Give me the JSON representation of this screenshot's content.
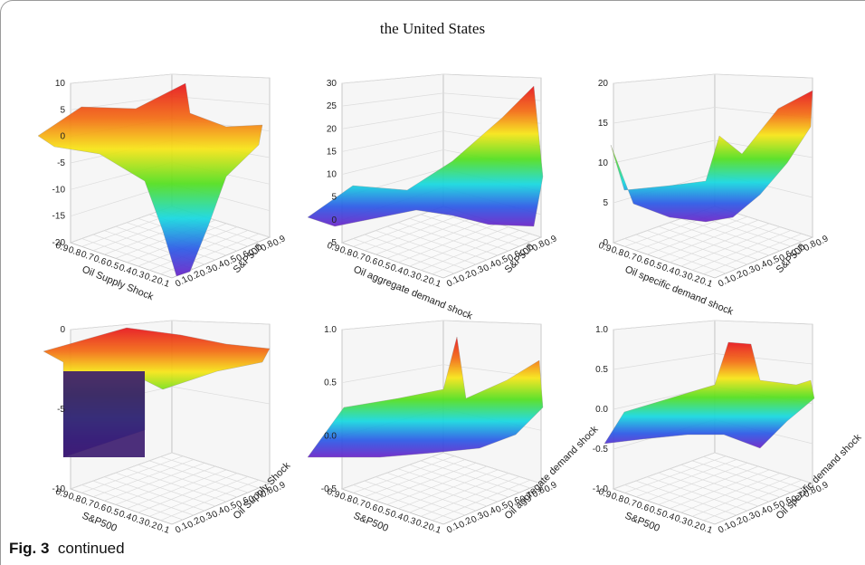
{
  "title": "the United States",
  "caption": {
    "label": "Fig. 3",
    "text": "continued"
  },
  "chart_data": [
    {
      "type": "surface",
      "panel": "row1-col1",
      "xlabel": "Oil Supply Shock",
      "ylabel": "S&P500",
      "xticks": [
        "0.9",
        "0.8",
        "0.7",
        "0.6",
        "0.5",
        "0.4",
        "0.3",
        "0.2",
        "0.1"
      ],
      "yticks": [
        "0.1",
        "0.2",
        "0.3",
        "0.4",
        "0.5",
        "0.6",
        "0.7",
        "0.8",
        "0.9"
      ],
      "zticks": [
        "10",
        "5",
        "0",
        "-5",
        "-10",
        "-15",
        "-20"
      ],
      "zlim": [
        -20,
        10
      ]
    },
    {
      "type": "surface",
      "panel": "row1-col2",
      "xlabel": "Oil aggregate demand shock",
      "ylabel": "S&P500",
      "xticks": [
        "0.9",
        "0.8",
        "0.7",
        "0.6",
        "0.5",
        "0.4",
        "0.3",
        "0.2",
        "0.1"
      ],
      "yticks": [
        "0.1",
        "0.2",
        "0.3",
        "0.4",
        "0.5",
        "0.6",
        "0.7",
        "0.8",
        "0.9"
      ],
      "zticks": [
        "30",
        "25",
        "20",
        "15",
        "10",
        "5",
        "0",
        "-5"
      ],
      "zlim": [
        -5,
        30
      ]
    },
    {
      "type": "surface",
      "panel": "row1-col3",
      "xlabel": "Oil specific demand shock",
      "ylabel": "S&P500",
      "xticks": [
        "0.9",
        "0.8",
        "0.7",
        "0.6",
        "0.5",
        "0.4",
        "0.3",
        "0.2",
        "0.1"
      ],
      "yticks": [
        "0.1",
        "0.2",
        "0.3",
        "0.4",
        "0.5",
        "0.6",
        "0.7",
        "0.8",
        "0.9"
      ],
      "zticks": [
        "20",
        "15",
        "10",
        "5",
        "0"
      ],
      "zlim": [
        0,
        20
      ]
    },
    {
      "type": "surface",
      "panel": "row2-col1",
      "xlabel": "S&P500",
      "ylabel": "Oil Supply Shock",
      "xticks": [
        "0.9",
        "0.8",
        "0.7",
        "0.6",
        "0.5",
        "0.4",
        "0.3",
        "0.2",
        "0.1"
      ],
      "yticks": [
        "0.1",
        "0.2",
        "0.3",
        "0.4",
        "0.5",
        "0.6",
        "0.7",
        "0.8",
        "0.9"
      ],
      "zticks": [
        "0",
        "-5",
        "-10"
      ],
      "zlim": [
        -10,
        0
      ]
    },
    {
      "type": "surface",
      "panel": "row2-col2",
      "xlabel": "S&P500",
      "ylabel": "Oil aggregate demand shock",
      "xticks": [
        "0.9",
        "0.8",
        "0.7",
        "0.6",
        "0.5",
        "0.4",
        "0.3",
        "0.2",
        "0.1"
      ],
      "yticks": [
        "0.1",
        "0.2",
        "0.3",
        "0.4",
        "0.5",
        "0.6",
        "0.7",
        "0.8",
        "0.9"
      ],
      "zticks": [
        "1.0",
        "0.5",
        "0.0",
        "-0.5"
      ],
      "zlim": [
        -0.5,
        1.0
      ]
    },
    {
      "type": "surface",
      "panel": "row2-col3",
      "xlabel": "S&P500",
      "ylabel": "Oil specific demand shock",
      "xticks": [
        "0.9",
        "0.8",
        "0.7",
        "0.6",
        "0.5",
        "0.4",
        "0.3",
        "0.2",
        "0.1"
      ],
      "yticks": [
        "0.1",
        "0.2",
        "0.3",
        "0.4",
        "0.5",
        "0.6",
        "0.7",
        "0.8",
        "0.9"
      ],
      "zticks": [
        "1.0",
        "0.5",
        "0.0",
        "-0.5",
        "-1.0"
      ],
      "zlim": [
        -1.0,
        1.0
      ]
    }
  ]
}
